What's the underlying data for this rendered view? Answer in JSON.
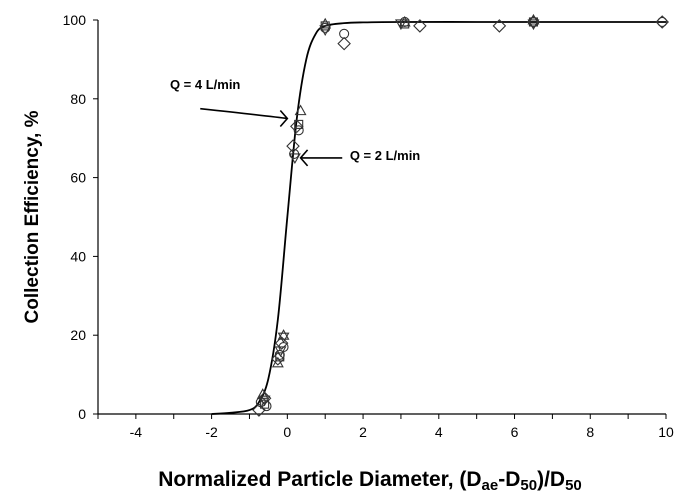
{
  "chart_data": {
    "type": "scatter",
    "xlabel": {
      "prefix": "Normalized Particle Diameter, (D",
      "sub1": "ae",
      "mid": "-D",
      "sub2": "50",
      "mid2": ")/D",
      "sub3": "50"
    },
    "ylabel": "Collection Efficiency, %",
    "xlim": [
      -5,
      10
    ],
    "ylim": [
      0,
      100
    ],
    "xticks": [
      "-4",
      "-2",
      "0",
      "2",
      "4",
      "6",
      "8",
      "10"
    ],
    "yticks": [
      "0",
      "20",
      "40",
      "60",
      "80",
      "100"
    ],
    "grid": false,
    "fit_curve": {
      "x": [
        -2.0,
        -1.5,
        -1.0,
        -0.75,
        -0.5,
        -0.25,
        0.0,
        0.25,
        0.5,
        0.75,
        1.0,
        1.5,
        2.0,
        3.0,
        5.0,
        7.0,
        10.0
      ],
      "y": [
        0,
        0.3,
        1,
        3,
        9,
        24,
        50,
        75,
        90,
        96.5,
        98.5,
        99.2,
        99.4,
        99.5,
        99.5,
        99.5,
        99.5
      ]
    },
    "series": [
      {
        "marker": "diamond",
        "points": [
          [
            -0.75,
            1.0
          ],
          [
            -0.6,
            4.0
          ],
          [
            -0.25,
            14.0
          ],
          [
            -0.15,
            18.0
          ],
          [
            0.15,
            68.0
          ],
          [
            0.25,
            73.0
          ],
          [
            1.5,
            94.0
          ],
          [
            3.5,
            98.5
          ],
          [
            5.6,
            98.5
          ],
          [
            6.5,
            99.5
          ],
          [
            9.9,
            99.5
          ]
        ]
      },
      {
        "marker": "circle",
        "points": [
          [
            -0.7,
            3.0
          ],
          [
            -0.55,
            2.0
          ],
          [
            -0.2,
            15.0
          ],
          [
            -0.1,
            17.0
          ],
          [
            0.18,
            66.0
          ],
          [
            0.3,
            72.0
          ],
          [
            1.0,
            98.0
          ],
          [
            1.5,
            96.5
          ],
          [
            3.1,
            99.5
          ],
          [
            6.5,
            99.5
          ],
          [
            9.9,
            99.5
          ]
        ]
      },
      {
        "marker": "triangle-up",
        "points": [
          [
            -0.65,
            5.0
          ],
          [
            -0.25,
            13.0
          ],
          [
            -0.1,
            20.0
          ],
          [
            0.35,
            77.0
          ],
          [
            1.0,
            99.0
          ],
          [
            3.1,
            99.5
          ],
          [
            6.5,
            100.0
          ]
        ]
      },
      {
        "marker": "triangle-down",
        "points": [
          [
            -0.6,
            3.5
          ],
          [
            -0.18,
            16.0
          ],
          [
            -0.1,
            19.5
          ],
          [
            0.2,
            65.0
          ],
          [
            1.0,
            97.5
          ],
          [
            3.0,
            99.0
          ],
          [
            6.5,
            99.0
          ]
        ]
      },
      {
        "marker": "square",
        "points": [
          [
            -0.6,
            2.5
          ],
          [
            -0.2,
            14.5
          ],
          [
            0.3,
            73.5
          ],
          [
            1.0,
            98.5
          ],
          [
            3.1,
            99.0
          ],
          [
            6.5,
            99.5
          ]
        ]
      }
    ],
    "annotations": [
      {
        "text": "Q = 4 L/min",
        "x": -3.1,
        "y": 82.5
      },
      {
        "text": "Q = 2 L/min",
        "x": 1.65,
        "y": 64.5
      }
    ]
  }
}
